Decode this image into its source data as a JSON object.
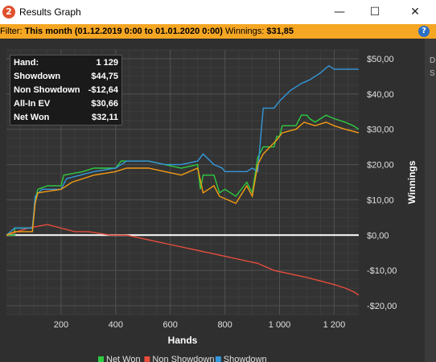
{
  "window": {
    "title": "Results Graph",
    "icon": "app-logo-icon",
    "controls": {
      "minimize": "—",
      "maximize": "☐",
      "close": "✕"
    }
  },
  "filter": {
    "label": "Filter:",
    "range": "This month (01.12.2019 0:00 to 01.01.2020 0:00)",
    "winnings_label": "Winnings:",
    "winnings_value": "$31,85"
  },
  "stats": [
    {
      "key": "Hand:",
      "value": "1 129"
    },
    {
      "key": "Showdown",
      "value": "$44,75"
    },
    {
      "key": "Non Showdown",
      "value": "-$12,64"
    },
    {
      "key": "All-In EV",
      "value": "$30,66"
    },
    {
      "key": "Net Won",
      "value": "$32,11"
    }
  ],
  "side_panel": {
    "letters": [
      "D",
      "S"
    ]
  },
  "chart_data": {
    "type": "line",
    "xlabel": "Hands",
    "ylabel": "Winnings",
    "xlim": [
      0,
      1290
    ],
    "ylim": [
      -22.5,
      52.5
    ],
    "x_ticks": [
      {
        "value": 200,
        "label": "200"
      },
      {
        "value": 400,
        "label": "400"
      },
      {
        "value": 600,
        "label": "600"
      },
      {
        "value": 800,
        "label": "800"
      },
      {
        "value": 1000,
        "label": "1 000"
      },
      {
        "value": 1200,
        "label": "1 200"
      }
    ],
    "y_ticks": [
      {
        "value": 50,
        "label": "$50,00"
      },
      {
        "value": 40,
        "label": "$40,00"
      },
      {
        "value": 30,
        "label": "$30,00"
      },
      {
        "value": 20,
        "label": "$20,00"
      },
      {
        "value": 10,
        "label": "$10,00"
      },
      {
        "value": 0,
        "label": "$0,00"
      },
      {
        "value": -10,
        "label": "-$10,00"
      },
      {
        "value": -20,
        "label": "-$20,00"
      }
    ],
    "grid": true,
    "legend_position": "bottom",
    "series": [
      {
        "name": "Net Won",
        "color": "#2ecc40",
        "points": [
          [
            0,
            0
          ],
          [
            30,
            0
          ],
          [
            30,
            2
          ],
          [
            95,
            2
          ],
          [
            105,
            10
          ],
          [
            115,
            13
          ],
          [
            150,
            14
          ],
          [
            200,
            14
          ],
          [
            210,
            17
          ],
          [
            280,
            18
          ],
          [
            320,
            19
          ],
          [
            400,
            19
          ],
          [
            420,
            21
          ],
          [
            520,
            21
          ],
          [
            580,
            20
          ],
          [
            640,
            19
          ],
          [
            700,
            20
          ],
          [
            710,
            13
          ],
          [
            720,
            17
          ],
          [
            760,
            17
          ],
          [
            780,
            12
          ],
          [
            800,
            13
          ],
          [
            840,
            11
          ],
          [
            880,
            15
          ],
          [
            900,
            12
          ],
          [
            920,
            22
          ],
          [
            940,
            25
          ],
          [
            980,
            25
          ],
          [
            990,
            28
          ],
          [
            1000,
            28
          ],
          [
            1010,
            31
          ],
          [
            1060,
            31
          ],
          [
            1080,
            34
          ],
          [
            1100,
            34
          ],
          [
            1110,
            33
          ],
          [
            1130,
            32
          ],
          [
            1170,
            34
          ],
          [
            1200,
            33
          ],
          [
            1240,
            32
          ],
          [
            1270,
            31
          ],
          [
            1290,
            30
          ]
        ]
      },
      {
        "name": "Non Showdown",
        "color": "#e74c3c",
        "points": [
          [
            0,
            0
          ],
          [
            40,
            1
          ],
          [
            80,
            2
          ],
          [
            150,
            3
          ],
          [
            200,
            2
          ],
          [
            250,
            1
          ],
          [
            300,
            1
          ],
          [
            380,
            0
          ],
          [
            440,
            0
          ],
          [
            500,
            -1
          ],
          [
            560,
            -2
          ],
          [
            620,
            -3
          ],
          [
            680,
            -4
          ],
          [
            740,
            -5
          ],
          [
            800,
            -6
          ],
          [
            860,
            -7
          ],
          [
            920,
            -8
          ],
          [
            980,
            -10
          ],
          [
            1040,
            -11
          ],
          [
            1100,
            -12
          ],
          [
            1150,
            -13
          ],
          [
            1200,
            -14
          ],
          [
            1240,
            -15
          ],
          [
            1270,
            -16
          ],
          [
            1290,
            -17
          ]
        ]
      },
      {
        "name": "Showdown",
        "color": "#3498db",
        "points": [
          [
            0,
            0
          ],
          [
            30,
            2
          ],
          [
            95,
            2
          ],
          [
            105,
            11
          ],
          [
            130,
            13
          ],
          [
            200,
            13
          ],
          [
            220,
            16
          ],
          [
            320,
            18
          ],
          [
            400,
            19
          ],
          [
            440,
            21
          ],
          [
            520,
            21
          ],
          [
            580,
            20
          ],
          [
            640,
            20
          ],
          [
            700,
            21
          ],
          [
            720,
            23
          ],
          [
            760,
            20
          ],
          [
            790,
            19
          ],
          [
            800,
            18
          ],
          [
            860,
            18
          ],
          [
            880,
            18
          ],
          [
            900,
            19
          ],
          [
            920,
            18
          ],
          [
            940,
            36
          ],
          [
            980,
            36
          ],
          [
            1000,
            38
          ],
          [
            1040,
            41
          ],
          [
            1080,
            43
          ],
          [
            1110,
            44
          ],
          [
            1150,
            46
          ],
          [
            1180,
            48
          ],
          [
            1200,
            47
          ],
          [
            1250,
            47
          ],
          [
            1290,
            47
          ]
        ]
      },
      {
        "name": "All-In EV",
        "color": "#f39c12",
        "points": [
          [
            0,
            0
          ],
          [
            30,
            1
          ],
          [
            95,
            1
          ],
          [
            105,
            9
          ],
          [
            115,
            12
          ],
          [
            200,
            13
          ],
          [
            240,
            15
          ],
          [
            320,
            17
          ],
          [
            400,
            18
          ],
          [
            440,
            19
          ],
          [
            520,
            19
          ],
          [
            580,
            18
          ],
          [
            640,
            17
          ],
          [
            700,
            19
          ],
          [
            720,
            12
          ],
          [
            760,
            14
          ],
          [
            780,
            11
          ],
          [
            840,
            9
          ],
          [
            880,
            14
          ],
          [
            900,
            11
          ],
          [
            920,
            20
          ],
          [
            940,
            23
          ],
          [
            990,
            27
          ],
          [
            1010,
            29
          ],
          [
            1060,
            30
          ],
          [
            1090,
            32
          ],
          [
            1130,
            31
          ],
          [
            1170,
            32
          ],
          [
            1200,
            31
          ],
          [
            1240,
            30
          ],
          [
            1290,
            29
          ]
        ]
      }
    ]
  }
}
